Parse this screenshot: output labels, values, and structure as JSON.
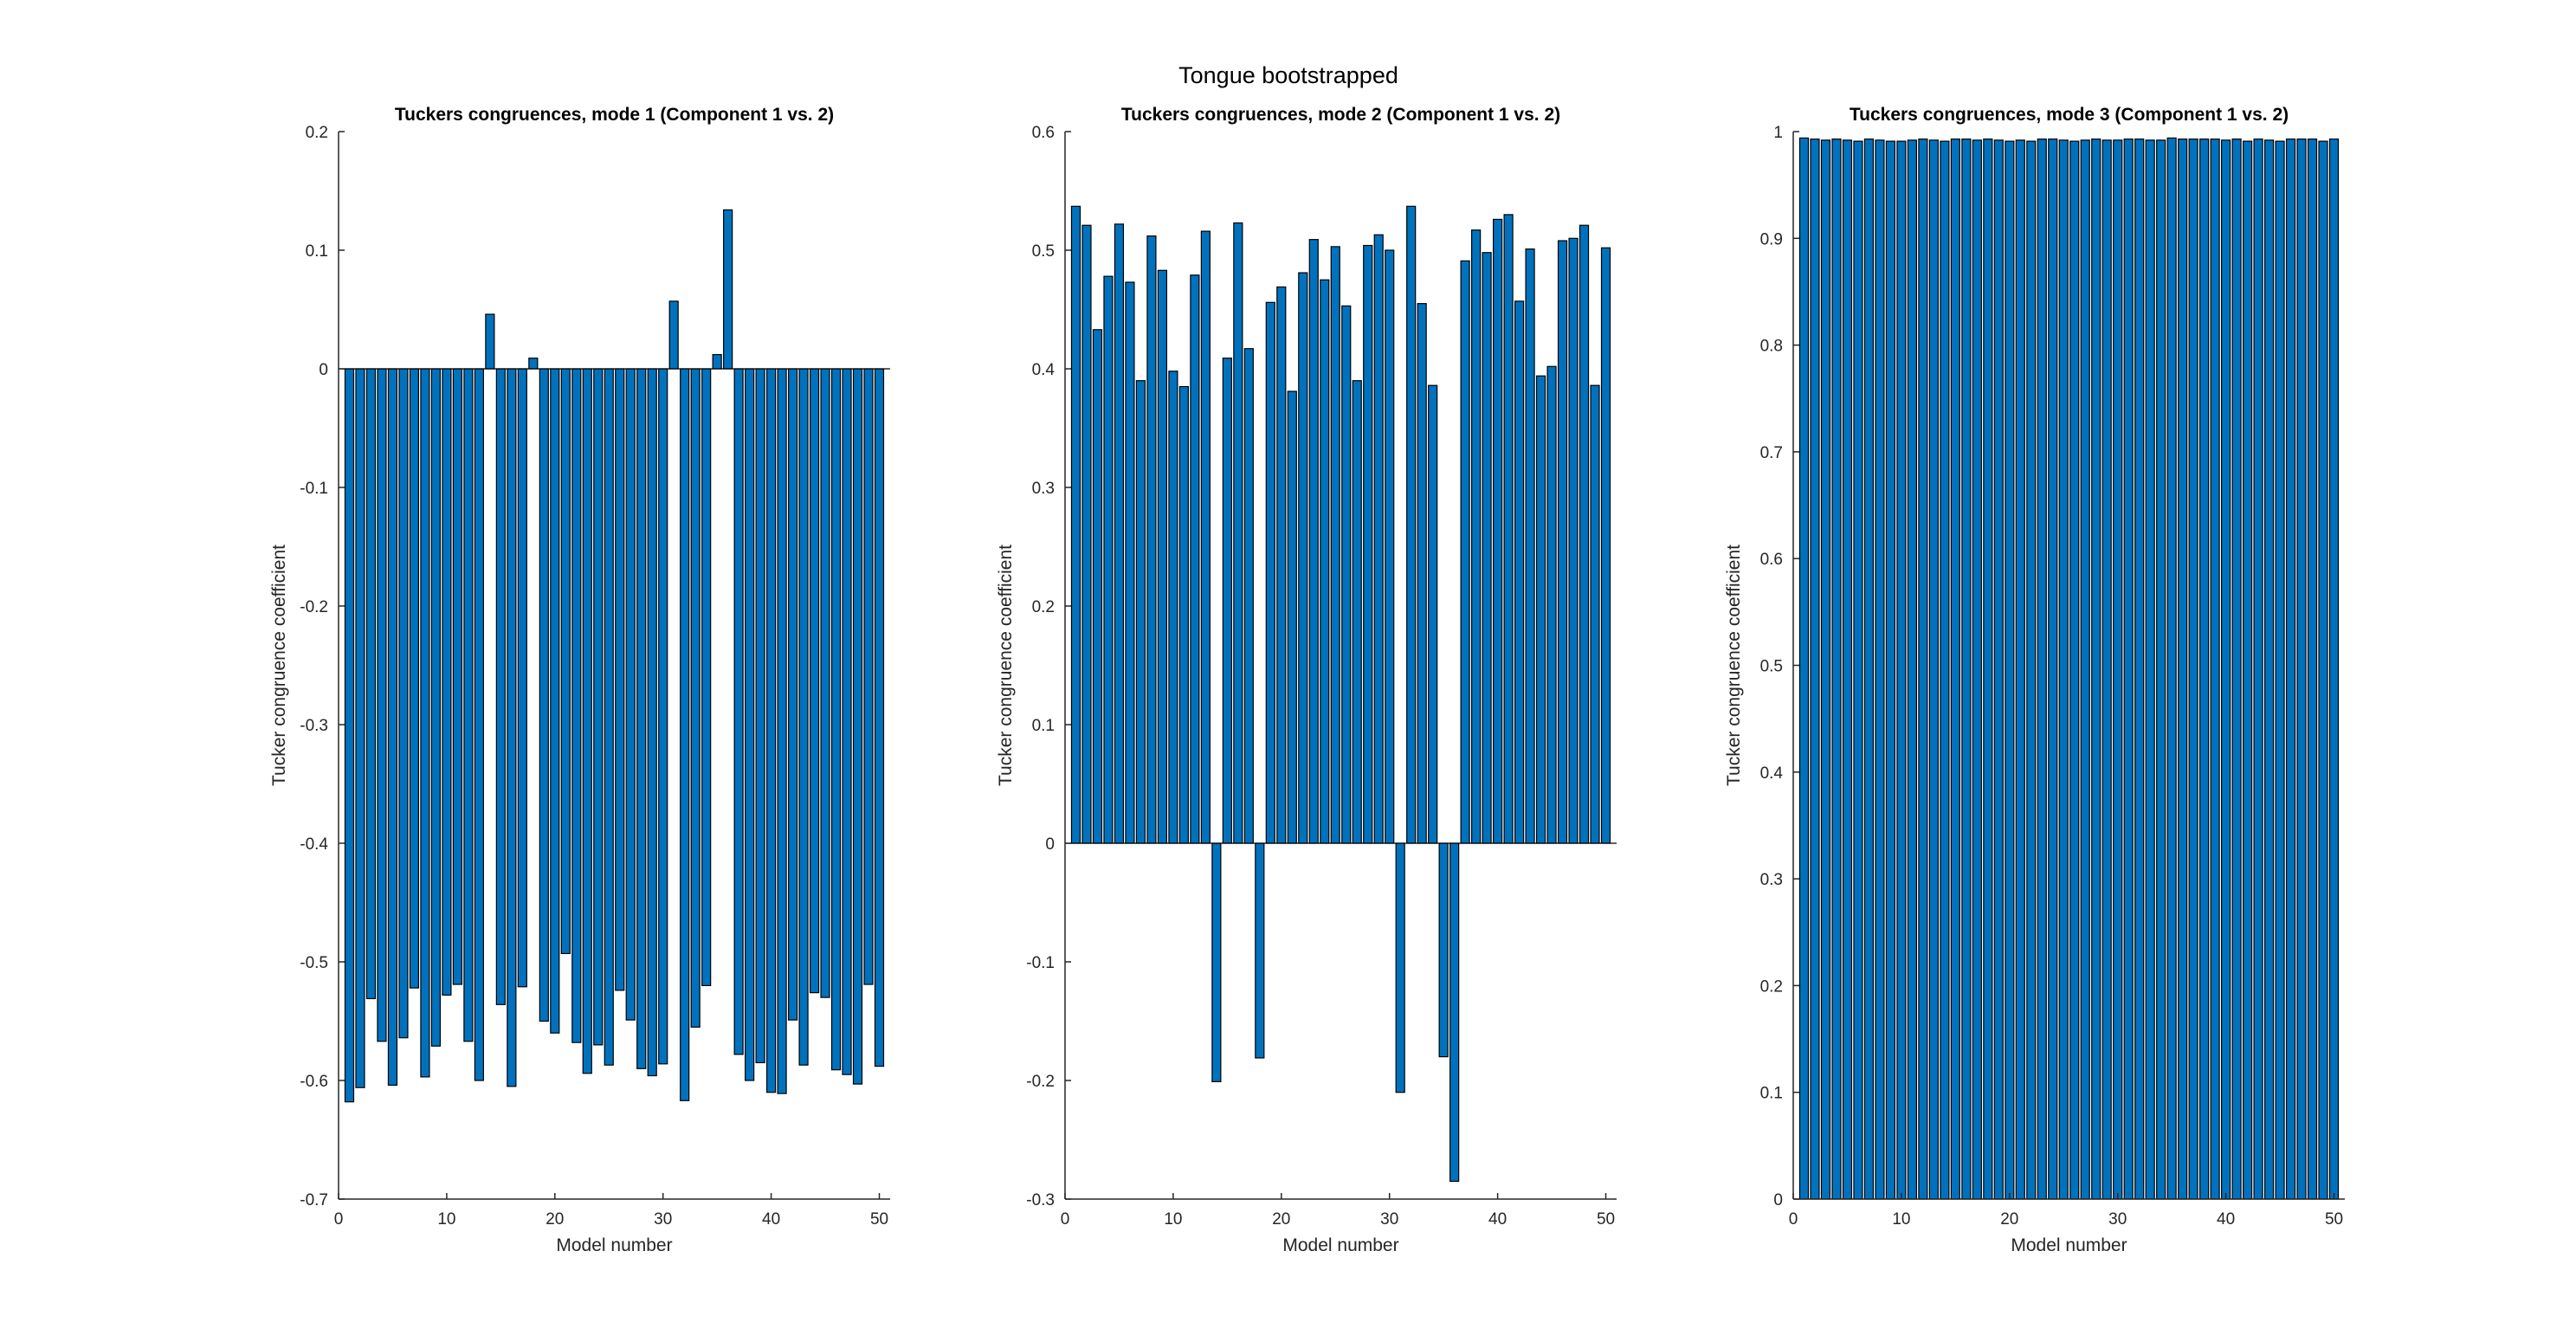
{
  "figure": {
    "suptitle": "Tongue bootstrapped"
  },
  "chart_data": [
    {
      "type": "bar",
      "title": "Tuckers congruences, mode 1 (Component 1 vs. 2)",
      "xlabel": "Model number",
      "ylabel": "Tucker congruence coefficient",
      "xlim": [
        0,
        51
      ],
      "ylim": [
        -0.7,
        0.2
      ],
      "xticks": [
        0,
        10,
        20,
        30,
        40,
        50
      ],
      "yticks": [
        -0.7,
        -0.6,
        -0.5,
        -0.4,
        -0.3,
        -0.2,
        -0.1,
        0,
        0.1,
        0.2
      ],
      "ytick_labels": [
        "-0.7",
        "-0.6",
        "-0.5",
        "-0.4",
        "-0.3",
        "-0.2",
        "-0.1",
        "0",
        "0.1",
        "0.2"
      ],
      "bar_color": "#0072bd",
      "grid": false,
      "x": [
        1,
        2,
        3,
        4,
        5,
        6,
        7,
        8,
        9,
        10,
        11,
        12,
        13,
        14,
        15,
        16,
        17,
        18,
        19,
        20,
        21,
        22,
        23,
        24,
        25,
        26,
        27,
        28,
        29,
        30,
        31,
        32,
        33,
        34,
        35,
        36,
        37,
        38,
        39,
        40,
        41,
        42,
        43,
        44,
        45,
        46,
        47,
        48,
        49,
        50
      ],
      "values": [
        -0.618,
        -0.606,
        -0.531,
        -0.567,
        -0.604,
        -0.564,
        -0.522,
        -0.597,
        -0.571,
        -0.528,
        -0.519,
        -0.567,
        -0.6,
        0.046,
        -0.536,
        -0.605,
        -0.521,
        0.009,
        -0.55,
        -0.56,
        -0.493,
        -0.568,
        -0.594,
        -0.57,
        -0.587,
        -0.524,
        -0.549,
        -0.59,
        -0.596,
        -0.586,
        0.057,
        -0.617,
        -0.555,
        -0.52,
        0.012,
        0.134,
        -0.578,
        -0.6,
        -0.585,
        -0.61,
        -0.611,
        -0.549,
        -0.587,
        -0.526,
        -0.53,
        -0.591,
        -0.595,
        -0.603,
        -0.519,
        -0.588
      ]
    },
    {
      "type": "bar",
      "title": "Tuckers congruences, mode 2 (Component 1 vs. 2)",
      "xlabel": "Model number",
      "ylabel": "Tucker congruence coefficient",
      "xlim": [
        0,
        51
      ],
      "ylim": [
        -0.3,
        0.6
      ],
      "xticks": [
        0,
        10,
        20,
        30,
        40,
        50
      ],
      "yticks": [
        -0.3,
        -0.2,
        -0.1,
        0,
        0.1,
        0.2,
        0.3,
        0.4,
        0.5,
        0.6
      ],
      "ytick_labels": [
        "-0.3",
        "-0.2",
        "-0.1",
        "0",
        "0.1",
        "0.2",
        "0.3",
        "0.4",
        "0.5",
        "0.6"
      ],
      "bar_color": "#0072bd",
      "grid": false,
      "x": [
        1,
        2,
        3,
        4,
        5,
        6,
        7,
        8,
        9,
        10,
        11,
        12,
        13,
        14,
        15,
        16,
        17,
        18,
        19,
        20,
        21,
        22,
        23,
        24,
        25,
        26,
        27,
        28,
        29,
        30,
        31,
        32,
        33,
        34,
        35,
        36,
        37,
        38,
        39,
        40,
        41,
        42,
        43,
        44,
        45,
        46,
        47,
        48,
        49,
        50
      ],
      "values": [
        0.537,
        0.521,
        0.433,
        0.478,
        0.522,
        0.473,
        0.39,
        0.512,
        0.483,
        0.398,
        0.385,
        0.479,
        0.516,
        -0.201,
        0.409,
        0.523,
        0.417,
        -0.181,
        0.456,
        0.469,
        0.381,
        0.481,
        0.509,
        0.475,
        0.503,
        0.453,
        0.39,
        0.504,
        0.513,
        0.5,
        -0.21,
        0.537,
        0.455,
        0.386,
        -0.18,
        -0.285,
        0.491,
        0.517,
        0.498,
        0.526,
        0.53,
        0.457,
        0.501,
        0.394,
        0.402,
        0.508,
        0.51,
        0.521,
        0.386,
        0.502
      ]
    },
    {
      "type": "bar",
      "title": "Tuckers congruences, mode 3 (Component 1 vs. 2)",
      "xlabel": "Model number",
      "ylabel": "Tucker congruence coefficient",
      "xlim": [
        0,
        51
      ],
      "ylim": [
        0,
        1
      ],
      "xticks": [
        0,
        10,
        20,
        30,
        40,
        50
      ],
      "yticks": [
        0,
        0.1,
        0.2,
        0.3,
        0.4,
        0.5,
        0.6,
        0.7,
        0.8,
        0.9,
        1
      ],
      "ytick_labels": [
        "0",
        "0.1",
        "0.2",
        "0.3",
        "0.4",
        "0.5",
        "0.6",
        "0.7",
        "0.8",
        "0.9",
        "1"
      ],
      "bar_color": "#0072bd",
      "grid": false,
      "x": [
        1,
        2,
        3,
        4,
        5,
        6,
        7,
        8,
        9,
        10,
        11,
        12,
        13,
        14,
        15,
        16,
        17,
        18,
        19,
        20,
        21,
        22,
        23,
        24,
        25,
        26,
        27,
        28,
        29,
        30,
        31,
        32,
        33,
        34,
        35,
        36,
        37,
        38,
        39,
        40,
        41,
        42,
        43,
        44,
        45,
        46,
        47,
        48,
        49,
        50
      ],
      "values": [
        0.994,
        0.993,
        0.992,
        0.993,
        0.992,
        0.991,
        0.993,
        0.992,
        0.991,
        0.991,
        0.992,
        0.993,
        0.992,
        0.991,
        0.993,
        0.993,
        0.992,
        0.993,
        0.992,
        0.991,
        0.992,
        0.991,
        0.993,
        0.993,
        0.992,
        0.991,
        0.992,
        0.993,
        0.992,
        0.992,
        0.993,
        0.993,
        0.992,
        0.992,
        0.994,
        0.993,
        0.993,
        0.993,
        0.993,
        0.992,
        0.993,
        0.991,
        0.993,
        0.992,
        0.991,
        0.993,
        0.993,
        0.993,
        0.991,
        0.993
      ]
    }
  ]
}
